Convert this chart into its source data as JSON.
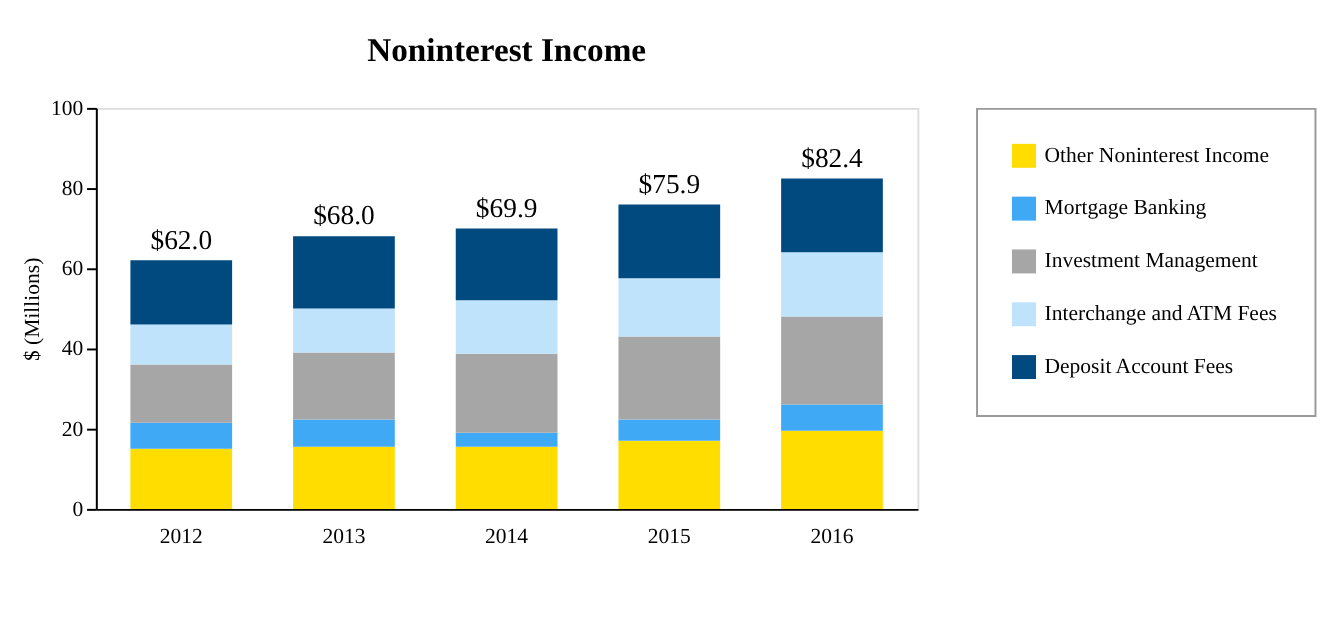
{
  "chart_data": {
    "type": "bar",
    "title": "Noninterest Income",
    "ylabel": "$ (Millions)",
    "stacked": true,
    "categories": [
      "2012",
      "2013",
      "2014",
      "2015",
      "2016"
    ],
    "series": [
      {
        "name": "Other Noninterest Income",
        "color": "#ffdd00",
        "values": [
          15,
          15.5,
          15.5,
          17,
          19.5
        ]
      },
      {
        "name": "Mortgage Banking",
        "color": "#3fa9f5",
        "values": [
          6.5,
          6.8,
          3.5,
          5.3,
          6.5
        ]
      },
      {
        "name": "Investment Management",
        "color": "#a6a6a6",
        "values": [
          14.5,
          16.7,
          19.7,
          20.7,
          22
        ]
      },
      {
        "name": "Interchange and ATM Fees",
        "color": "#bfe3fb",
        "values": [
          10,
          11,
          13.3,
          14.5,
          16
        ]
      },
      {
        "name": "Deposit Account Fees",
        "color": "#004a80",
        "values": [
          16,
          18,
          17.9,
          18.4,
          18.4
        ]
      }
    ],
    "totals": [
      "$62.0",
      "$68.0",
      "$69.9",
      "$75.9",
      "$82.4"
    ],
    "ylim": [
      0,
      100
    ],
    "yticks": [
      0,
      20,
      40,
      60,
      80,
      100
    ],
    "grid": false,
    "legend": "right"
  }
}
